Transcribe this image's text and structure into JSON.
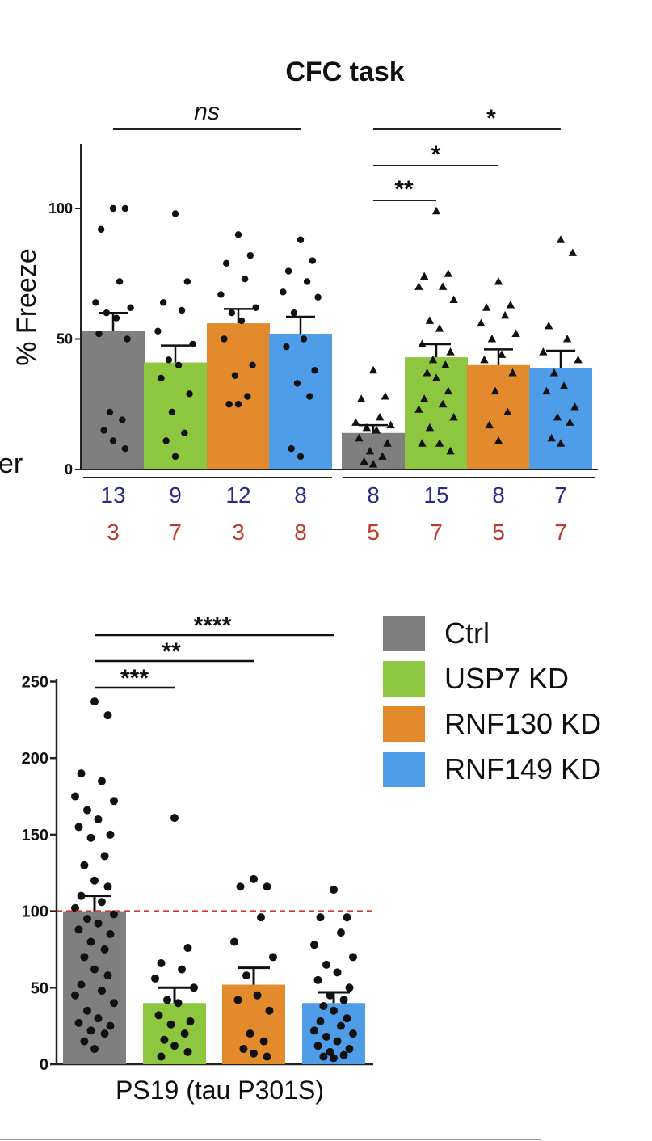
{
  "colors": {
    "Ctrl": "#7f7f7f",
    "USP7 KD": "#8dc63f",
    "RNF130 KD": "#e38a2d",
    "RNF149 KD": "#4f9de8",
    "n_top": "#2b2b86",
    "n_bottom": "#c0392b",
    "reference_line": "#d9362b"
  },
  "edge_fragment": "er",
  "chart_data": [
    {
      "type": "bar",
      "title": "CFC task",
      "ylabel": "% Freeze",
      "ylim": [
        0,
        120
      ],
      "yticks": [
        0,
        50,
        100
      ],
      "ytick_labels": [
        "0",
        "50",
        "100"
      ],
      "group_marker_shapes": [
        "circle",
        "triangle"
      ],
      "groups": [
        {
          "bars": [
            {
              "name": "Ctrl",
              "value": 53,
              "sem": 7,
              "n_top": "13",
              "n_bottom": "3",
              "points": [
                100,
                100,
                92,
                72,
                64,
                62,
                60,
                58,
                52,
                50,
                22,
                19,
                15,
                11,
                8
              ]
            },
            {
              "name": "USP7 KD",
              "value": 41,
              "sem": 6.5,
              "n_top": "9",
              "n_bottom": "7",
              "points": [
                98,
                72,
                64,
                61,
                53,
                48,
                42,
                40,
                35,
                29,
                22,
                14,
                11,
                5
              ]
            },
            {
              "name": "RNF130 KD",
              "value": 56,
              "sem": 5.5,
              "n_top": "12",
              "n_bottom": "3",
              "points": [
                90,
                82,
                79,
                73,
                67,
                62,
                60,
                57,
                50,
                40,
                36,
                28,
                25,
                25
              ]
            },
            {
              "name": "RNF149 KD",
              "value": 52,
              "sem": 6.5,
              "n_top": "8",
              "n_bottom": "8",
              "points": [
                88,
                80,
                76,
                72,
                68,
                66,
                60,
                50,
                47,
                38,
                33,
                28,
                8,
                5
              ]
            }
          ],
          "significance": [
            {
              "from": "Ctrl",
              "to": "RNF149 KD",
              "label": "ns"
            }
          ]
        },
        {
          "bars": [
            {
              "name": "Ctrl",
              "value": 14,
              "sem": 3,
              "n_top": "8",
              "n_bottom": "5",
              "points": [
                38,
                28,
                27,
                20,
                18,
                17,
                16,
                15,
                12,
                10,
                7,
                5,
                3,
                2
              ]
            },
            {
              "name": "USP7 KD",
              "value": 43,
              "sem": 5,
              "n_top": "15",
              "n_bottom": "7",
              "points": [
                99,
                75,
                74,
                70,
                70,
                65,
                57,
                54,
                48,
                45,
                42,
                40,
                37,
                35,
                30,
                27,
                25,
                23,
                20,
                16,
                10,
                10,
                7
              ]
            },
            {
              "name": "RNF130 KD",
              "value": 40,
              "sem": 6,
              "n_top": "8",
              "n_bottom": "5",
              "points": [
                72,
                63,
                62,
                59,
                56,
                52,
                50,
                44,
                42,
                37,
                30,
                22,
                17,
                11
              ]
            },
            {
              "name": "RNF149 KD",
              "value": 39,
              "sem": 6.5,
              "n_top": "7",
              "n_bottom": "7",
              "points": [
                88,
                83,
                55,
                50,
                45,
                42,
                37,
                32,
                30,
                24,
                20,
                18,
                12,
                10
              ]
            }
          ],
          "significance": [
            {
              "from": "Ctrl",
              "to": "RNF149 KD",
              "label": "*"
            },
            {
              "from": "Ctrl",
              "to": "RNF130 KD",
              "label": "*"
            },
            {
              "from": "Ctrl",
              "to": "USP7 KD",
              "label": "**"
            }
          ]
        }
      ]
    },
    {
      "type": "bar",
      "title": "",
      "xlabel": "PS19 (tau P301S)",
      "ylim": [
        0,
        250
      ],
      "yticks": [
        0,
        50,
        100,
        150,
        200,
        250
      ],
      "ytick_labels": [
        "0",
        "50",
        "100",
        "150",
        "200",
        "250"
      ],
      "reference_line": 100,
      "bars": [
        {
          "name": "Ctrl",
          "value": 100,
          "sem": 10,
          "points": [
            237,
            228,
            190,
            185,
            175,
            172,
            166,
            160,
            155,
            150,
            148,
            136,
            130,
            120,
            116,
            110,
            106,
            102,
            98,
            95,
            92,
            88,
            85,
            80,
            75,
            70,
            62,
            58,
            52,
            48,
            45,
            40,
            35,
            30,
            27,
            25,
            22,
            20,
            15,
            10
          ]
        },
        {
          "name": "USP7 KD",
          "value": 40,
          "sem": 10,
          "points": [
            161,
            76,
            66,
            62,
            56,
            50,
            42,
            40,
            32,
            28,
            26,
            20,
            16,
            12,
            8,
            5
          ]
        },
        {
          "name": "RNF130 KD",
          "value": 52,
          "sem": 11,
          "points": [
            121,
            116,
            116,
            96,
            80,
            70,
            58,
            45,
            42,
            35,
            20,
            15,
            10,
            7,
            5
          ]
        },
        {
          "name": "RNF149 KD",
          "value": 40,
          "sem": 7,
          "points": [
            114,
            96,
            96,
            86,
            78,
            70,
            65,
            60,
            55,
            50,
            45,
            42,
            38,
            35,
            30,
            28,
            25,
            22,
            20,
            18,
            15,
            12,
            10,
            8,
            6,
            5,
            4
          ]
        }
      ],
      "significance": [
        {
          "from": "Ctrl",
          "to": "RNF149 KD",
          "label": "****"
        },
        {
          "from": "Ctrl",
          "to": "RNF130 KD",
          "label": "**"
        },
        {
          "from": "Ctrl",
          "to": "USP7 KD",
          "label": "***"
        }
      ],
      "legend": {
        "position": "right",
        "entries": [
          "Ctrl",
          "USP7 KD",
          "RNF130 KD",
          "RNF149 KD"
        ]
      }
    }
  ]
}
